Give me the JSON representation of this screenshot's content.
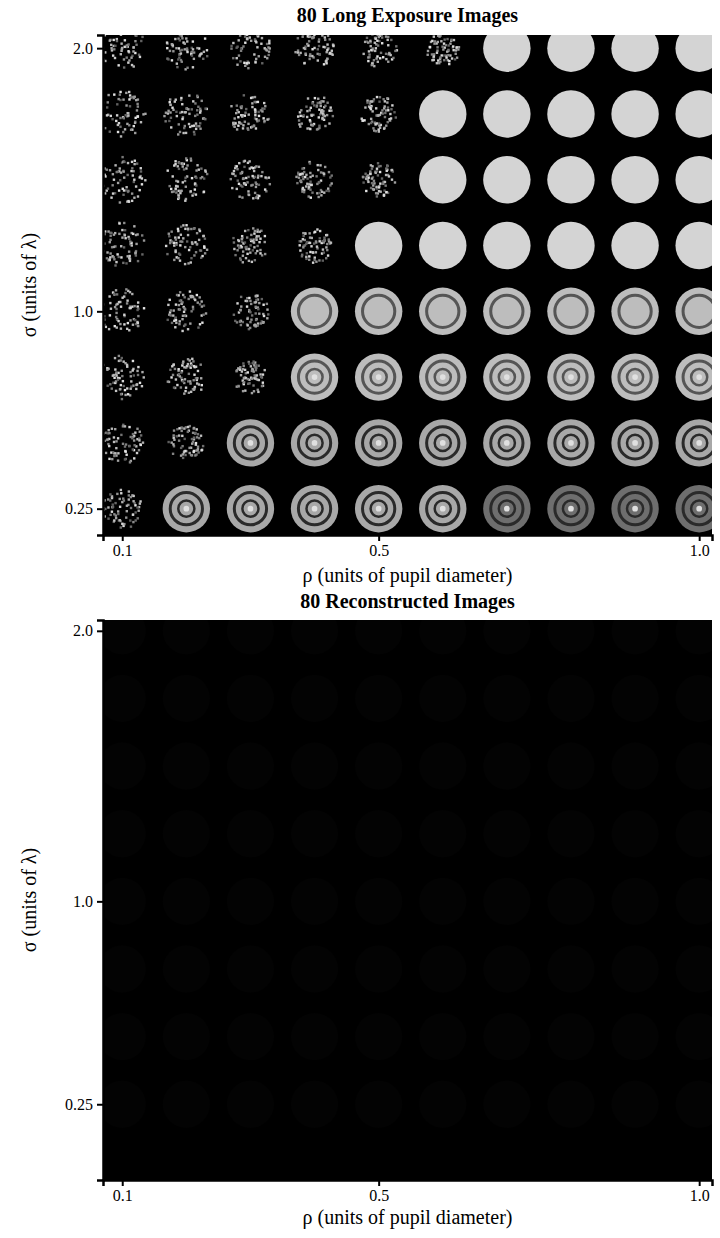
{
  "chart_data": [
    {
      "type": "image_grid",
      "title": "80 Long Exposure Images",
      "x_label": "ρ (units of pupil diameter)",
      "y_label": "σ (units of λ)",
      "x": [
        0.1,
        0.2,
        0.3,
        0.4,
        0.5,
        0.6,
        0.7,
        0.8,
        0.9,
        1.0
      ],
      "y": [
        0.25,
        0.5,
        0.75,
        1.0,
        1.25,
        1.5,
        1.75,
        2.0
      ],
      "xlim": [
        0.07,
        1.02
      ],
      "ylim": [
        0.15,
        2.05
      ],
      "xticks": [
        0.1,
        0.5,
        {
          "value": 1,
          "label": "1.0"
        }
      ],
      "yticks": [
        0.25,
        {
          "value": 1,
          "label": "1.0"
        },
        {
          "value": 2,
          "label": "2.0"
        }
      ]
    },
    {
      "type": "image_grid",
      "title": "80 Reconstructed Images",
      "x_label": "ρ (units of pupil diameter)",
      "y_label": "σ (units of λ)",
      "x": [
        0.1,
        0.2,
        0.3,
        0.4,
        0.5,
        0.6,
        0.7,
        0.8,
        0.9,
        1.0
      ],
      "y": [
        0.25,
        0.5,
        0.75,
        1.0,
        1.25,
        1.5,
        1.75,
        2.0
      ],
      "xlim": [
        0.07,
        1.02
      ],
      "ylim": [
        -0.03,
        2.04
      ],
      "xticks": [
        0.1,
        0.5,
        {
          "value": 1,
          "label": "1.0"
        }
      ],
      "yticks": [
        0.25,
        {
          "value": 1,
          "label": "1.0"
        },
        {
          "value": 2,
          "label": "2.0"
        }
      ]
    }
  ]
}
